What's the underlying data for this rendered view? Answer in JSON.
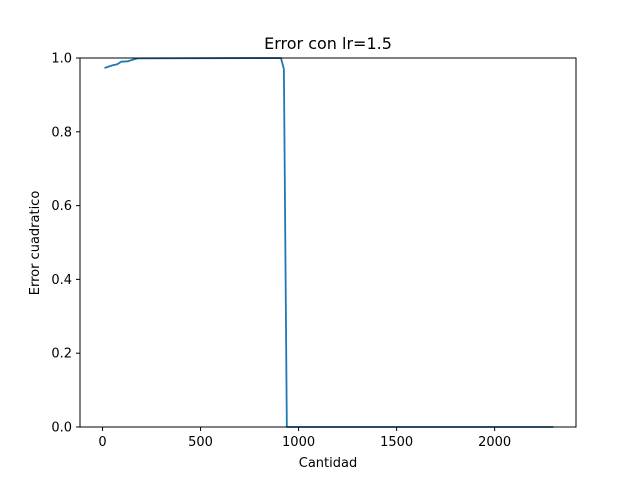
{
  "chart_data": {
    "type": "line",
    "title": "Error con lr=1.5",
    "xlabel": "Cantidad",
    "ylabel": "Error cuadratico",
    "xlim": [
      -115,
      2415
    ],
    "ylim": [
      0.0,
      1.0
    ],
    "xticks": [
      0,
      500,
      1000,
      1500,
      2000
    ],
    "xtick_labels": [
      "0",
      "500",
      "1000",
      "1500",
      "2000"
    ],
    "yticks": [
      0.0,
      0.2,
      0.4,
      0.6,
      0.8,
      1.0
    ],
    "ytick_labels": [
      "0.0",
      "0.2",
      "0.4",
      "0.6",
      "0.8",
      "1.0"
    ],
    "grid": false,
    "series": [
      {
        "color": "#1f77b4",
        "x": [
          10,
          50,
          75,
          95,
          130,
          150,
          180,
          910,
          925,
          940,
          960,
          1200,
          1600,
          2000,
          2300
        ],
        "y": [
          0.973,
          0.98,
          0.983,
          0.99,
          0.991,
          0.995,
          0.999,
          1.0,
          0.97,
          0.0,
          0.0,
          0.0,
          0.0,
          0.0,
          0.0
        ]
      }
    ]
  }
}
